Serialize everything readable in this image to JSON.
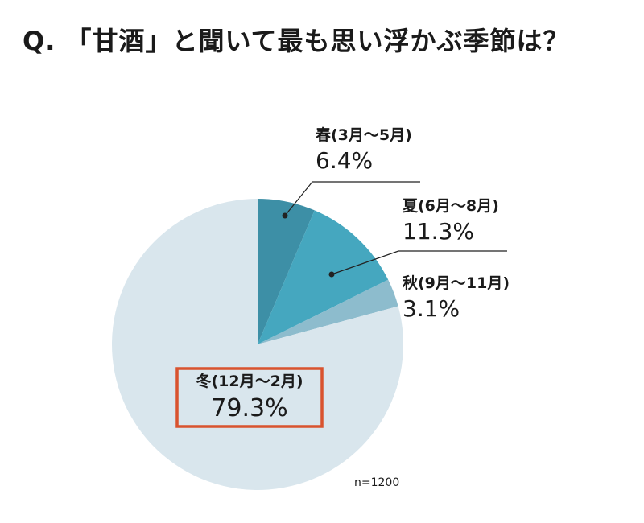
{
  "title": "Q. 「甘酒」と聞いて最も思い浮かぶ季節は？",
  "note": "n=1200",
  "chart_data": {
    "type": "pie",
    "title": "Q. 「甘酒」と聞いて最も思い浮かぶ季節は？",
    "slices": [
      {
        "label": "春(3月〜5月)",
        "pct_label": "6.4%",
        "value": 6.4,
        "color": "#3d8fa6"
      },
      {
        "label": "夏(6月〜8月)",
        "pct_label": "11.3%",
        "value": 11.3,
        "color": "#45a7bf"
      },
      {
        "label": "秋(9月〜11月)",
        "pct_label": "3.1%",
        "value": 3.1,
        "color": "#8dbccd"
      },
      {
        "label": "冬(12月〜2月)",
        "pct_label": "79.3%",
        "value": 79.3,
        "color": "#d9e6ed"
      }
    ],
    "start": "12 o'clock, clockwise",
    "highlight": {
      "slice": 3,
      "color": "#d9532f"
    },
    "sample_size": "n=1200"
  }
}
